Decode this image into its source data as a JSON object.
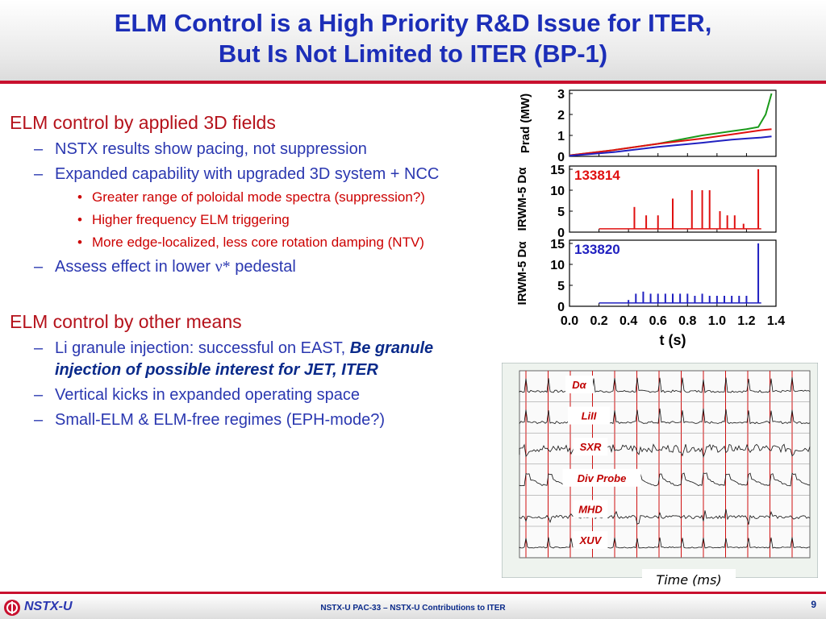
{
  "slide": {
    "title_line1": "ELM Control is a High Priority R&D Issue for ITER,",
    "title_line2": "But Is Not Limited to ITER (BP-1)"
  },
  "content": {
    "section1": {
      "heading": "ELM control by applied 3D fields",
      "items": [
        "NSTX results show pacing, not suppression",
        "Expanded capability with upgraded 3D system + NCC"
      ],
      "subitems": [
        "Greater range of poloidal mode spectra (suppression?)",
        "Higher frequency ELM triggering",
        "More edge-localized, less core rotation damping (NTV)"
      ],
      "assess_prefix": "Assess effect in lower",
      "assess_symbol": "ν*",
      "assess_suffix": "pedestal"
    },
    "section2": {
      "heading": "ELM control by other means",
      "li_prefix": "Li granule injection: successful on EAST,",
      "li_emph": "Be granule injection of possible interest for JET, ITER",
      "items": [
        "Vertical kicks in expanded operating space",
        "Small-ELM & ELM-free regimes (EPH-mode?)"
      ]
    }
  },
  "chart_data": [
    {
      "type": "line",
      "title": "",
      "xlabel": "t (s)",
      "x_ticks": [
        "0.0",
        "0.2",
        "0.4",
        "0.6",
        "0.8",
        "1.0",
        "1.2",
        "1.4"
      ],
      "xlim": [
        0,
        1.4
      ],
      "panels": [
        {
          "ylabel": "Prad (MW)",
          "ylim": [
            0,
            3
          ],
          "y_ticks": [
            "0",
            "1",
            "2",
            "3"
          ],
          "series": [
            {
              "name": "green",
              "color": "#1a9a1a",
              "x": [
                0,
                0.3,
                0.6,
                0.9,
                1.1,
                1.2,
                1.28,
                1.33,
                1.37
              ],
              "y": [
                0.05,
                0.3,
                0.6,
                1.0,
                1.2,
                1.3,
                1.4,
                2.0,
                3.0
              ]
            },
            {
              "name": "red",
              "color": "#e01010",
              "x": [
                0,
                0.3,
                0.6,
                0.9,
                1.1,
                1.2,
                1.3,
                1.37
              ],
              "y": [
                0.05,
                0.3,
                0.6,
                0.85,
                1.05,
                1.15,
                1.25,
                1.3
              ]
            },
            {
              "name": "blue",
              "color": "#2020c0",
              "x": [
                0,
                0.3,
                0.6,
                0.9,
                1.1,
                1.2,
                1.3,
                1.37
              ],
              "y": [
                0.03,
                0.2,
                0.45,
                0.65,
                0.8,
                0.85,
                0.9,
                0.95
              ]
            }
          ]
        },
        {
          "ylabel": "IRWM-5 Dα",
          "ylim": [
            0,
            15
          ],
          "y_ticks": [
            "0",
            "5",
            "10",
            "15"
          ],
          "shot": "133814",
          "series": [
            {
              "name": "133814",
              "color": "#e01010",
              "baseline": 0.8,
              "spikes": [
                [
                  0.44,
                  6
                ],
                [
                  0.52,
                  4
                ],
                [
                  0.6,
                  4
                ],
                [
                  0.7,
                  8
                ],
                [
                  0.83,
                  10
                ],
                [
                  0.9,
                  10
                ],
                [
                  0.95,
                  10
                ],
                [
                  1.02,
                  5
                ],
                [
                  1.07,
                  4
                ],
                [
                  1.12,
                  4
                ],
                [
                  1.18,
                  2
                ],
                [
                  1.28,
                  15
                ]
              ]
            }
          ]
        },
        {
          "ylabel": "IRWM-5 Dα",
          "ylim": [
            0,
            15
          ],
          "y_ticks": [
            "0",
            "5",
            "10",
            "15"
          ],
          "shot": "133820",
          "series": [
            {
              "name": "133820",
              "color": "#2020c0",
              "baseline": 0.8,
              "spikes": [
                [
                  0.4,
                  1.5
                ],
                [
                  0.45,
                  3
                ],
                [
                  0.5,
                  3.5
                ],
                [
                  0.55,
                  3
                ],
                [
                  0.6,
                  3
                ],
                [
                  0.65,
                  3
                ],
                [
                  0.7,
                  3
                ],
                [
                  0.75,
                  3
                ],
                [
                  0.8,
                  3
                ],
                [
                  0.85,
                  2.5
                ],
                [
                  0.9,
                  3
                ],
                [
                  0.95,
                  2.5
                ],
                [
                  1.0,
                  2.5
                ],
                [
                  1.05,
                  2.5
                ],
                [
                  1.1,
                  2.5
                ],
                [
                  1.15,
                  2.5
                ],
                [
                  1.2,
                  2.5
                ],
                [
                  1.28,
                  15
                ]
              ]
            }
          ]
        }
      ]
    },
    {
      "type": "line",
      "title": "",
      "xlabel": "Time (ms)",
      "channels": [
        "Dα",
        "LiII",
        "SXR",
        "Div Probe",
        "MHD",
        "XUV"
      ]
    }
  ],
  "footer": {
    "logo_text": "NSTX-U",
    "center": "NSTX-U PAC-33 – NSTX-U Contributions to ITER",
    "page": "9"
  },
  "colors": {
    "title": "#1c2eb8",
    "accent": "#c8102e"
  }
}
